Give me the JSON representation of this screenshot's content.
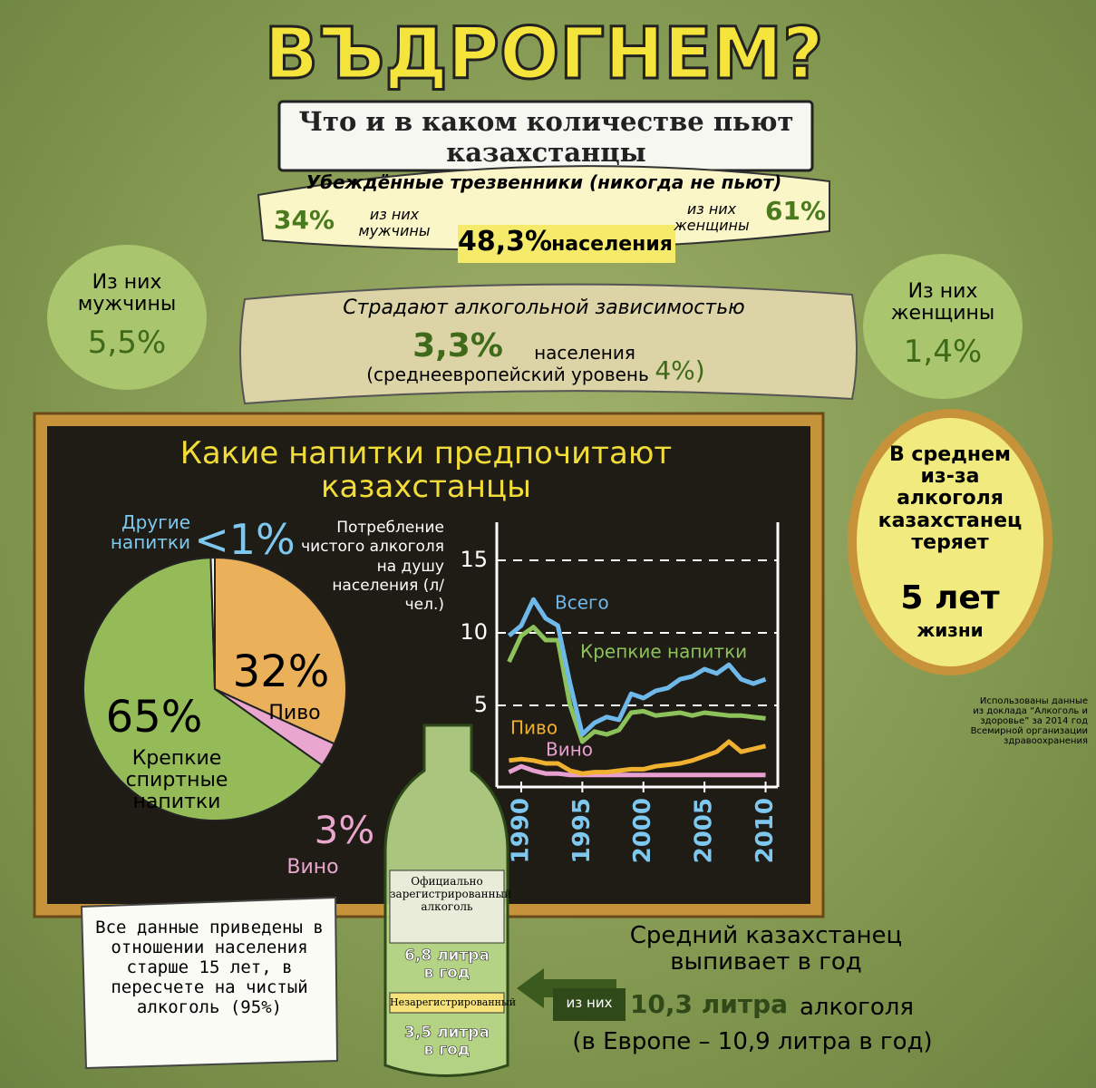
{
  "header": {
    "title": "ВЪДРОГНЕМ?",
    "subtitle": "Что и в каком количестве пьют казахстанцы"
  },
  "sober": {
    "title": "Убеждённые трезвенники (никогда не пьют)",
    "men_value": "34%",
    "men_label": "из них мужчины",
    "total": "48,3%",
    "total_label": "населения",
    "women_label": "из них женщины",
    "women_value": "61%"
  },
  "dependence": {
    "men_label": "Из них мужчины",
    "men_value": "5,5%",
    "title": "Страдают алкогольной зависимостью",
    "value": "3,3%",
    "value_label": "населения",
    "europe": "(среднеевропейский уровень",
    "europe_value": "4%)",
    "women_label": "Из них женщины",
    "women_value": "1,4%"
  },
  "chart_data": [
    {
      "type": "pie",
      "title": "Какие напитки предпочитают казахстанцы",
      "categories": [
        "Пиво",
        "Вино",
        "Крепкие спиртные напитки",
        "Другие напитки"
      ],
      "values": [
        32,
        3,
        65,
        0.5
      ],
      "value_labels": [
        "32%",
        "3%",
        "65%",
        "<1%"
      ],
      "colors": [
        "#eab05a",
        "#e9a6cf",
        "#94bb58",
        "#f4f4f4"
      ]
    },
    {
      "type": "line",
      "ylabel": "Потребление чистого алкоголя на душу населения (л/чел.)",
      "x": [
        1989,
        1990,
        1991,
        1992,
        1993,
        1994,
        1995,
        1996,
        1997,
        1998,
        1999,
        2000,
        2001,
        2002,
        2003,
        2004,
        2005,
        2006,
        2007,
        2008,
        2009,
        2010
      ],
      "xlim": [
        1988,
        2011
      ],
      "ylim": [
        0,
        17
      ],
      "xticks": [
        1990,
        1995,
        2000,
        2005,
        2010
      ],
      "yticks": [
        5,
        10,
        15
      ],
      "grid": true,
      "series": [
        {
          "name": "Всего",
          "color": "#6fb8ea",
          "values": [
            9.8,
            10.5,
            12.3,
            11.0,
            10.5,
            6.5,
            3.0,
            3.8,
            4.2,
            4.0,
            5.8,
            5.5,
            6.0,
            6.2,
            6.8,
            7.0,
            7.5,
            7.2,
            7.8,
            6.8,
            6.5,
            6.8
          ]
        },
        {
          "name": "Крепкие напитки",
          "color": "#8cc25a",
          "values": [
            8.0,
            9.8,
            10.4,
            9.5,
            9.5,
            5.0,
            2.5,
            3.2,
            3.0,
            3.3,
            4.5,
            4.6,
            4.3,
            4.4,
            4.5,
            4.3,
            4.5,
            4.4,
            4.3,
            4.3,
            4.2,
            4.1
          ]
        },
        {
          "name": "Пиво",
          "color": "#f0b030",
          "values": [
            1.2,
            1.3,
            1.2,
            1.0,
            1.0,
            0.5,
            0.3,
            0.4,
            0.4,
            0.5,
            0.6,
            0.6,
            0.8,
            0.9,
            1.0,
            1.2,
            1.5,
            1.8,
            2.5,
            1.8,
            2.0,
            2.2
          ]
        },
        {
          "name": "Вино",
          "color": "#e8a0d0",
          "values": [
            0.4,
            0.8,
            0.5,
            0.3,
            0.3,
            0.2,
            0.2,
            0.2,
            0.2,
            0.2,
            0.2,
            0.2,
            0.2,
            0.2,
            0.2,
            0.2,
            0.2,
            0.2,
            0.2,
            0.2,
            0.2,
            0.2
          ]
        }
      ]
    }
  ],
  "life": {
    "text": "В среднем из-за алкоголя казахстанец теряет",
    "value": "5 лет",
    "value_label": "жизни"
  },
  "source": "Использованы данные из доклада “Алкоголь и здоровье” за 2014 год Всемирной организации здравоохранения",
  "note": "Все данные приведены в отношении населения старше 15 лет, в пересчете на чистый алкоголь (95%)",
  "bottle": {
    "registered": "Официально зарегистрированный алкоголь",
    "registered_value": "6,8 литра в год",
    "unregistered": "Незарегистрированный",
    "unregistered_value": "3,5 литра в год"
  },
  "average": {
    "title": "Средний казахстанец выпивает в год",
    "prefix": "из них",
    "value": "10,3 литра",
    "value_label": "алкоголя",
    "europe": "(в Европе – 10,9 литра в год)"
  }
}
